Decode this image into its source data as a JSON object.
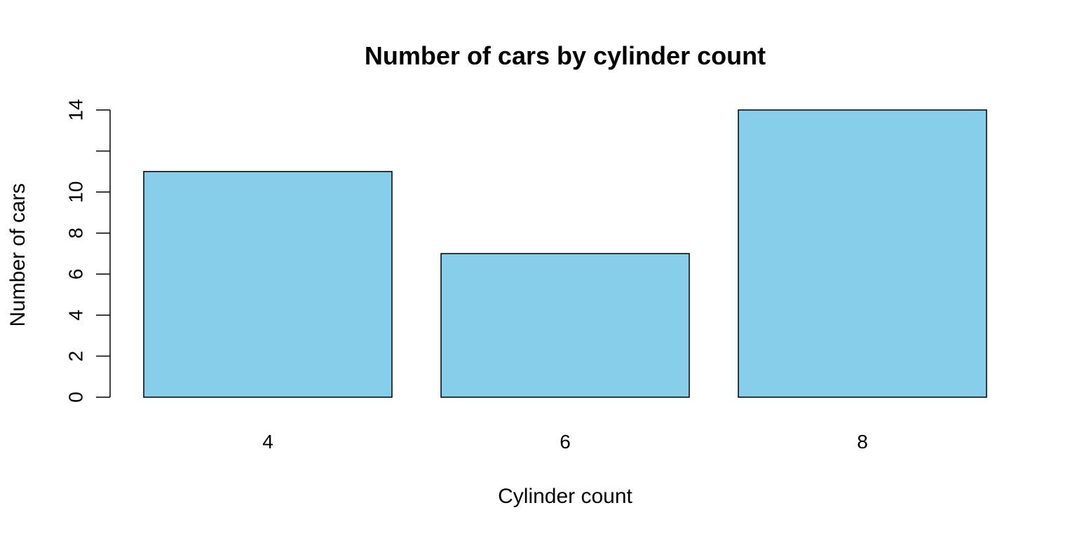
{
  "chart_data": {
    "type": "bar",
    "title": "Number of cars by cylinder count",
    "xlabel": "Cylinder count",
    "ylabel": "Number of cars",
    "categories": [
      "4",
      "6",
      "8"
    ],
    "values": [
      11,
      7,
      14
    ],
    "ylim": [
      0,
      14
    ],
    "yticks": [
      0,
      2,
      4,
      6,
      8,
      10,
      12,
      14
    ],
    "ytick_labels": [
      "0",
      "2",
      "4",
      "6",
      "8",
      "10",
      "",
      "14"
    ],
    "bar_color": "#87CEEB",
    "bar_edge_color": "#000000",
    "grid": false
  }
}
